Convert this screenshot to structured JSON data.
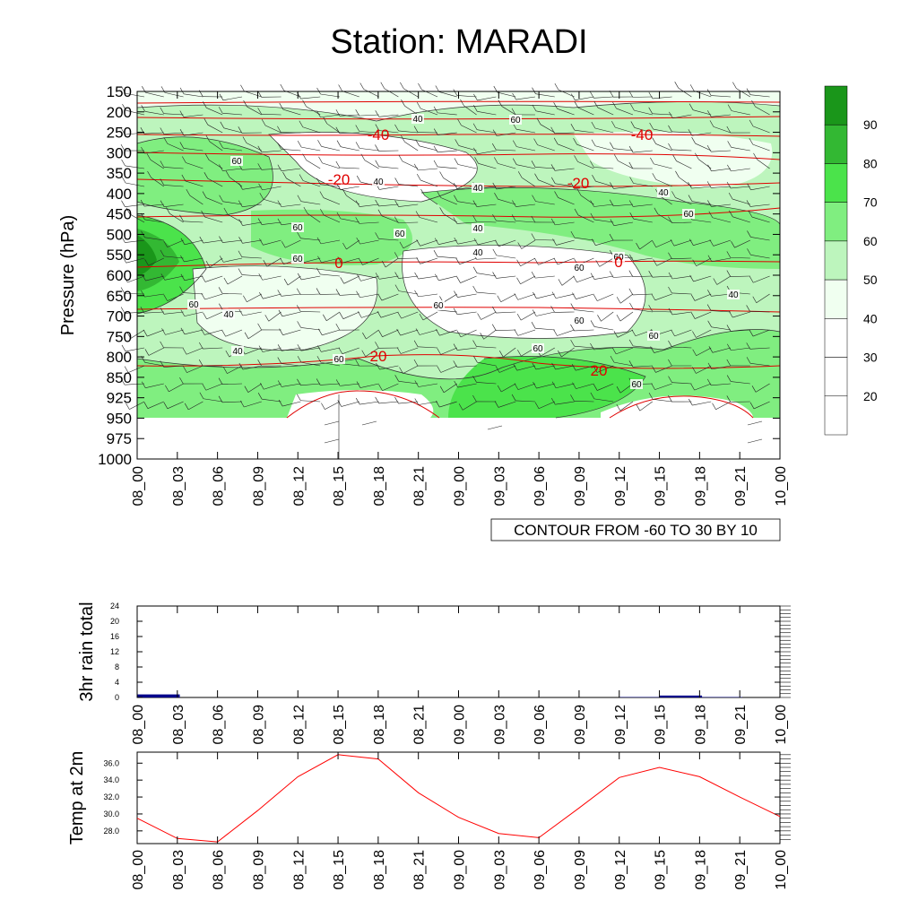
{
  "title": "Station: MARADI",
  "time_labels": [
    "08_00",
    "08_03",
    "08_06",
    "08_09",
    "08_12",
    "08_15",
    "08_18",
    "08_21",
    "09_00",
    "09_03",
    "09_06",
    "09_09",
    "09_12",
    "09_15",
    "09_18",
    "09_21",
    "10_00"
  ],
  "chart_data": [
    {
      "type": "heatmap",
      "title": "Station: MARADI",
      "ylabel": "Pressure (hPa)",
      "xlabel": "",
      "y_levels": [
        150,
        200,
        250,
        300,
        350,
        400,
        450,
        500,
        550,
        600,
        650,
        700,
        750,
        800,
        850,
        925,
        950,
        975,
        1000
      ],
      "contour_note": "CONTOUR FROM -60 TO 30 BY 10",
      "colorbar": {
        "levels": [
          20,
          30,
          40,
          50,
          60,
          70,
          80,
          90
        ],
        "colors": [
          "#ffffff",
          "#ffffff",
          "#ffffff",
          "#f0fff0",
          "#bdf5bd",
          "#80ee80",
          "#4be34b",
          "#33b833",
          "#1a961a"
        ]
      },
      "humidity_contour_labels": [
        "40",
        "60",
        "40",
        "60",
        "40",
        "60",
        "40",
        "60",
        "60",
        "40",
        "60",
        "60",
        "40",
        "60",
        "40",
        "60",
        "60",
        "60",
        "40",
        "60",
        "60",
        "60",
        "40",
        "60"
      ],
      "temperature_contour_labels": [
        "-40",
        "-40",
        "-20",
        "-20",
        "0",
        "0",
        "20",
        "20"
      ]
    },
    {
      "type": "bar",
      "ylabel": "3hr rain total",
      "ylim": [
        0,
        24
      ],
      "yticks": [
        "0",
        "4",
        "8",
        "12",
        "16",
        "20",
        "24"
      ],
      "values": [
        0.8,
        0,
        0,
        0,
        0,
        0,
        0,
        0,
        0,
        0,
        0,
        0,
        0.1,
        0.5,
        0.1,
        0
      ],
      "bar_color": "#00008b"
    },
    {
      "type": "line",
      "ylabel": "Temp at 2m",
      "ylim": [
        26.5,
        37.3
      ],
      "yticks": [
        "28.0",
        "30.0",
        "32.0",
        "34.0",
        "36.0"
      ],
      "values": [
        29.5,
        27.1,
        26.7,
        30.4,
        34.4,
        37.0,
        36.5,
        32.5,
        29.6,
        27.7,
        27.2,
        30.7,
        34.3,
        35.5,
        34.4,
        32.0,
        29.7
      ],
      "line_color": "#ff0000"
    }
  ]
}
